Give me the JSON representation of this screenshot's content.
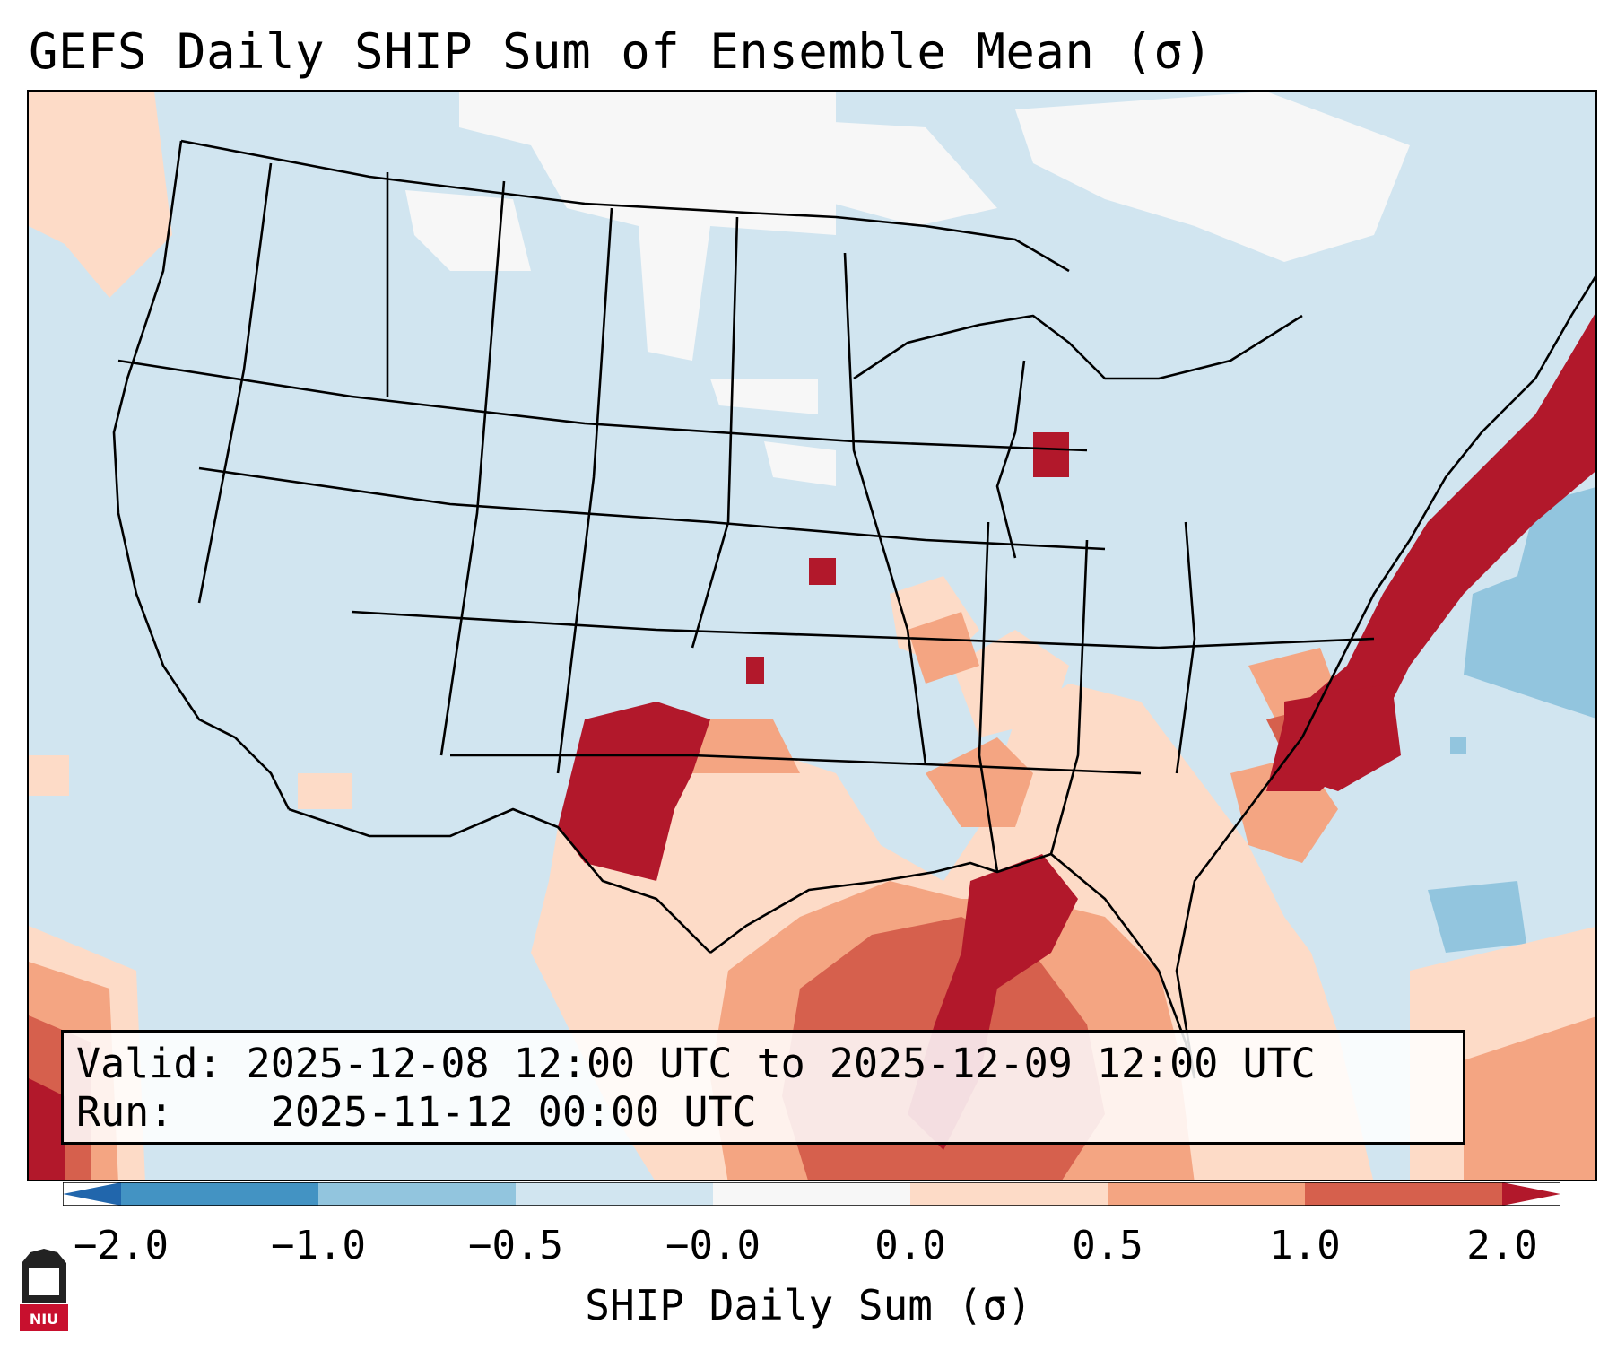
{
  "title": "GEFS Daily SHIP Sum of Ensemble Mean (σ)",
  "info": {
    "valid_label": "Valid:",
    "valid_value": "2025-12-08 12:00 UTC to 2025-12-09 12:00 UTC",
    "run_label": "Run:",
    "run_value": "2025-11-12 00:00 UTC"
  },
  "colorbar": {
    "label": "SHIP Daily Sum (σ)",
    "ticks": [
      "−2.0",
      "−1.0",
      "−0.5",
      "−0.0",
      "0.0",
      "0.5",
      "1.0",
      "2.0"
    ],
    "bins": [
      {
        "range": "below -2.0",
        "color": "#2166ac"
      },
      {
        "range": "-2.0 to -1.0",
        "color": "#4393c3"
      },
      {
        "range": "-1.0 to -0.5",
        "color": "#92c5de"
      },
      {
        "range": "-0.5 to -0.0",
        "color": "#d1e5f0"
      },
      {
        "range": "-0.0 to 0.0",
        "color": "#f7f7f7"
      },
      {
        "range": "0.0 to 0.5",
        "color": "#fddbc7"
      },
      {
        "range": "0.5 to 1.0",
        "color": "#f4a582"
      },
      {
        "range": "1.0 to 2.0",
        "color": "#d6604d"
      },
      {
        "range": "above 2.0",
        "color": "#b2182b"
      }
    ]
  },
  "logo": {
    "text": "NIU",
    "icon": "niu-logo-icon",
    "color": "#c8102e"
  }
}
